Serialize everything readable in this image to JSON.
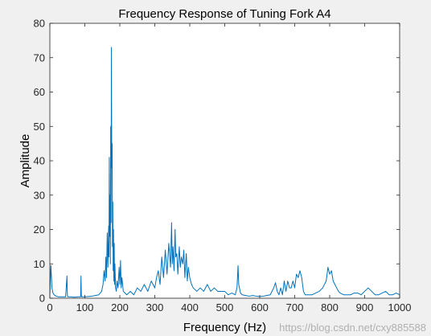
{
  "chart_data": {
    "type": "line",
    "title": "Frequency Response of Tuning Fork A4",
    "xlabel": "Frequency (Hz)",
    "ylabel": "Amplitude",
    "xlim": [
      0,
      1000
    ],
    "ylim": [
      0,
      80
    ],
    "xticks": [
      0,
      100,
      200,
      300,
      400,
      500,
      600,
      700,
      800,
      900,
      1000
    ],
    "yticks": [
      0,
      10,
      20,
      30,
      40,
      50,
      60,
      70,
      80
    ],
    "xtick_labels": [
      "0",
      "100",
      "200",
      "300",
      "400",
      "500",
      "600",
      "700",
      "800",
      "900",
      "1000"
    ],
    "ytick_labels": [
      "0",
      "10",
      "20",
      "30",
      "40",
      "50",
      "60",
      "70",
      "80"
    ],
    "grid": false,
    "line_color": "#0072bd",
    "series": [
      {
        "x": [
          0,
          3,
          6,
          9,
          12,
          18,
          25,
          35,
          45,
          49,
          50,
          51,
          60,
          70,
          80,
          88,
          89,
          90,
          91,
          100,
          110,
          120,
          130,
          140,
          148,
          152,
          155,
          158,
          160,
          162,
          164,
          166,
          168,
          169,
          170,
          171,
          172,
          173,
          174,
          175,
          176,
          177,
          178,
          179,
          180,
          181,
          182,
          183,
          184,
          185,
          186,
          188,
          190,
          192,
          195,
          198,
          200,
          202,
          204,
          206,
          210,
          215,
          220,
          230,
          240,
          250,
          260,
          270,
          280,
          290,
          300,
          305,
          310,
          315,
          320,
          325,
          330,
          335,
          340,
          345,
          348,
          350,
          352,
          355,
          358,
          360,
          363,
          366,
          370,
          373,
          376,
          380,
          383,
          386,
          390,
          393,
          396,
          400,
          405,
          410,
          420,
          430,
          440,
          450,
          460,
          470,
          480,
          490,
          500,
          510,
          520,
          530,
          535,
          538,
          540,
          545,
          550,
          560,
          570,
          580,
          590,
          600,
          610,
          620,
          630,
          640,
          645,
          650,
          655,
          660,
          665,
          670,
          675,
          680,
          685,
          690,
          695,
          700,
          705,
          710,
          715,
          720,
          725,
          730,
          740,
          750,
          760,
          770,
          780,
          790,
          795,
          800,
          805,
          810,
          815,
          820,
          825,
          830,
          840,
          850,
          860,
          870,
          880,
          890,
          900,
          910,
          920,
          930,
          940,
          950,
          960,
          970,
          980,
          990,
          1000
        ],
        "y": [
          1,
          9.5,
          3,
          1.5,
          1,
          0.6,
          0.4,
          0.4,
          0.4,
          6.5,
          1,
          0.4,
          0.4,
          0.3,
          0.4,
          0.4,
          6.5,
          1,
          0.4,
          0.4,
          0.5,
          0.6,
          0.8,
          1,
          2,
          4,
          8,
          5,
          12,
          6,
          19,
          9,
          21,
          12,
          41,
          18,
          30,
          10,
          50,
          22,
          73,
          38,
          45,
          15,
          28,
          8,
          20,
          5,
          16,
          4,
          10,
          3,
          2,
          5,
          3,
          9,
          4,
          11,
          3,
          6,
          2,
          1.5,
          1,
          2,
          1,
          3,
          2,
          4,
          2,
          5,
          3,
          6,
          8,
          4,
          12,
          6,
          14,
          7,
          16,
          9,
          22,
          10,
          15,
          8,
          20,
          12,
          13,
          7,
          15,
          9,
          12,
          10,
          14,
          6,
          13,
          5,
          9,
          6,
          4,
          3,
          2,
          3,
          2,
          4,
          2,
          3,
          2,
          2,
          2,
          1,
          1.5,
          1,
          3,
          9.5,
          4,
          1.5,
          1,
          0.8,
          0.6,
          0.8,
          0.6,
          0.5,
          0.6,
          0.8,
          1,
          3,
          4.5,
          2,
          1,
          3,
          1,
          5,
          2,
          5,
          3,
          3,
          5,
          3,
          7,
          6,
          8,
          6,
          2,
          1,
          1,
          1,
          1.5,
          2,
          3,
          5,
          9,
          7,
          8,
          5,
          4,
          3,
          2,
          1.5,
          1,
          1,
          1,
          1.5,
          1.5,
          1,
          2,
          3,
          2,
          1,
          1,
          1.5,
          2,
          1,
          1,
          1.5,
          1
        ]
      }
    ]
  },
  "watermark": "https://blog.csdn.net/cxy885588"
}
